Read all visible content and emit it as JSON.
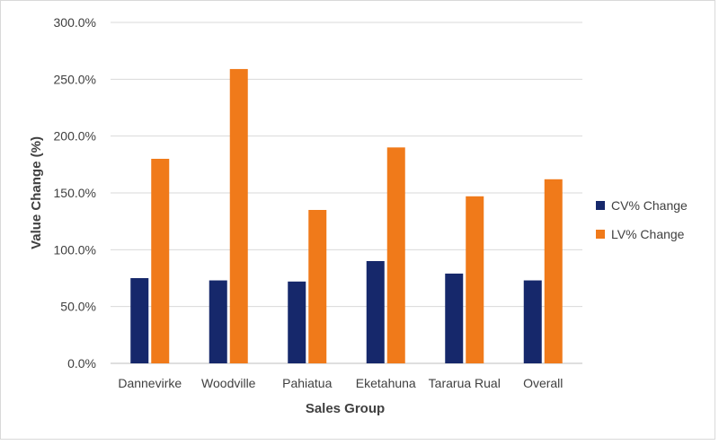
{
  "chart_data": {
    "type": "bar",
    "title": "",
    "xlabel": "Sales Group",
    "ylabel": "Value Change (%)",
    "ylim": [
      0,
      300
    ],
    "ytick_step": 50,
    "ytick_suffix": "%",
    "ytick_decimals": 1,
    "grid": true,
    "legend_position": "right",
    "categories": [
      "Dannevirke",
      "Woodville",
      "Pahiatua",
      "Eketahuna",
      "Tararua Rual",
      "Overall"
    ],
    "series": [
      {
        "name": "CV% Change",
        "color": "#16286b",
        "values": [
          75,
          73,
          72,
          90,
          79,
          73
        ]
      },
      {
        "name": "LV% Change",
        "color": "#f07a1a",
        "values": [
          180,
          259,
          135,
          190,
          147,
          162
        ]
      }
    ]
  }
}
